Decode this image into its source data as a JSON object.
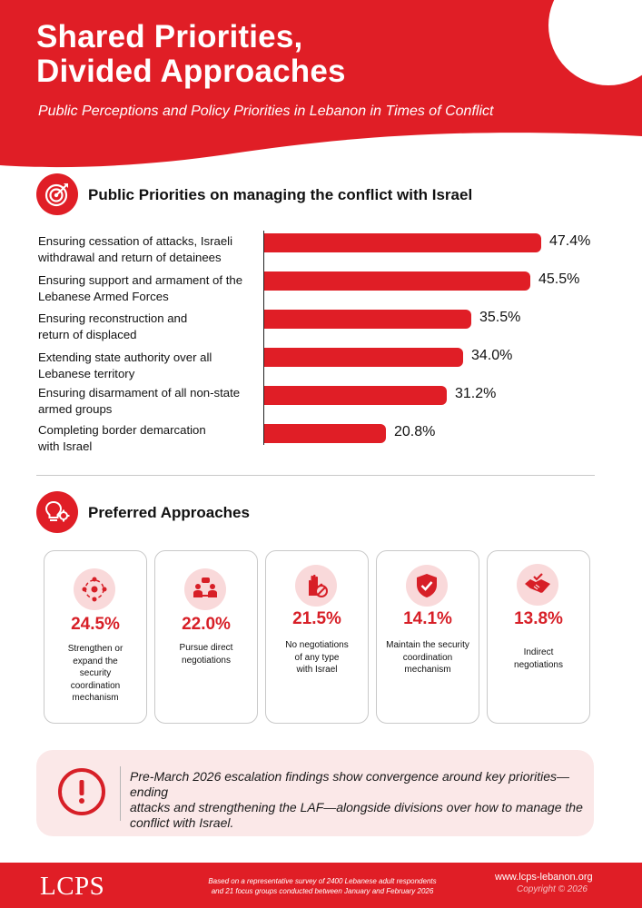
{
  "header": {
    "title_line1": "Shared Priorities,",
    "title_line2": "Divided Approaches",
    "subtitle": "Public Perceptions and Policy Priorities in Lebanon in Times of Conflict"
  },
  "colors": {
    "accent": "#e01e26",
    "accent_light": "#fbe8e8",
    "icon_bg": "#f9d9da"
  },
  "section1": {
    "title": "Public Priorities on managing the conflict with Israel",
    "icon": "target-icon"
  },
  "chart_data": {
    "type": "bar",
    "orientation": "horizontal",
    "categories": [
      [
        "Ensuring cessation of attacks, Israeli",
        "withdrawal and return of detainees"
      ],
      [
        "Ensuring support and armament of the",
        "Lebanese Armed Forces"
      ],
      [
        "Ensuring reconstruction and",
        "return of displaced"
      ],
      [
        "Extending state authority over all",
        "Lebanese territory"
      ],
      [
        "Ensuring disarmament of all non-state",
        "armed groups"
      ],
      [
        "Completing border demarcation",
        "with Israel"
      ]
    ],
    "values": [
      47.4,
      45.5,
      35.5,
      34.0,
      31.2,
      20.8
    ],
    "value_labels": [
      "47.4%",
      "45.5%",
      "35.5%",
      "34.0%",
      "31.2%",
      "20.8%"
    ],
    "xlim": [
      0,
      50
    ],
    "grid": false,
    "color": "#e01e26"
  },
  "section2": {
    "title": "Preferred Approaches",
    "icon": "lightbulb-gear-icon"
  },
  "approaches": [
    {
      "value": "24.5%",
      "lines": [
        "Strengthen or",
        "expand the",
        "security",
        "coordination",
        "mechanism"
      ],
      "icon": "network-icon"
    },
    {
      "value": "22.0%",
      "lines": [
        "Pursue direct",
        "negotiations"
      ],
      "icon": "dialogue-icon"
    },
    {
      "value": "21.5%",
      "lines": [
        "No negotiations",
        "of any type",
        "with Israel"
      ],
      "icon": "stop-hand-icon"
    },
    {
      "value": "14.1%",
      "lines": [
        "Maintain the security",
        "coordination",
        "mechanism"
      ],
      "icon": "shield-check-icon"
    },
    {
      "value": "13.8%",
      "lines": [
        "Indirect",
        "negotiations"
      ],
      "icon": "handshake-icon"
    }
  ],
  "note": {
    "icon": "exclamation-icon",
    "lines": [
      "Pre-March 2026 escalation findings show convergence around key priorities—ending",
      "attacks and strengthening the LAF—alongside divisions over how to manage the",
      "conflict with Israel."
    ]
  },
  "footer": {
    "logo": "LCPS",
    "note_line1": "Based on a representative survey of 2400 Lebanese adult respondents",
    "note_line2": "and 21 focus groups conducted between January and February 2026",
    "url": "www.lcps-lebanon.org",
    "copyright": "Copyright © 2026"
  }
}
